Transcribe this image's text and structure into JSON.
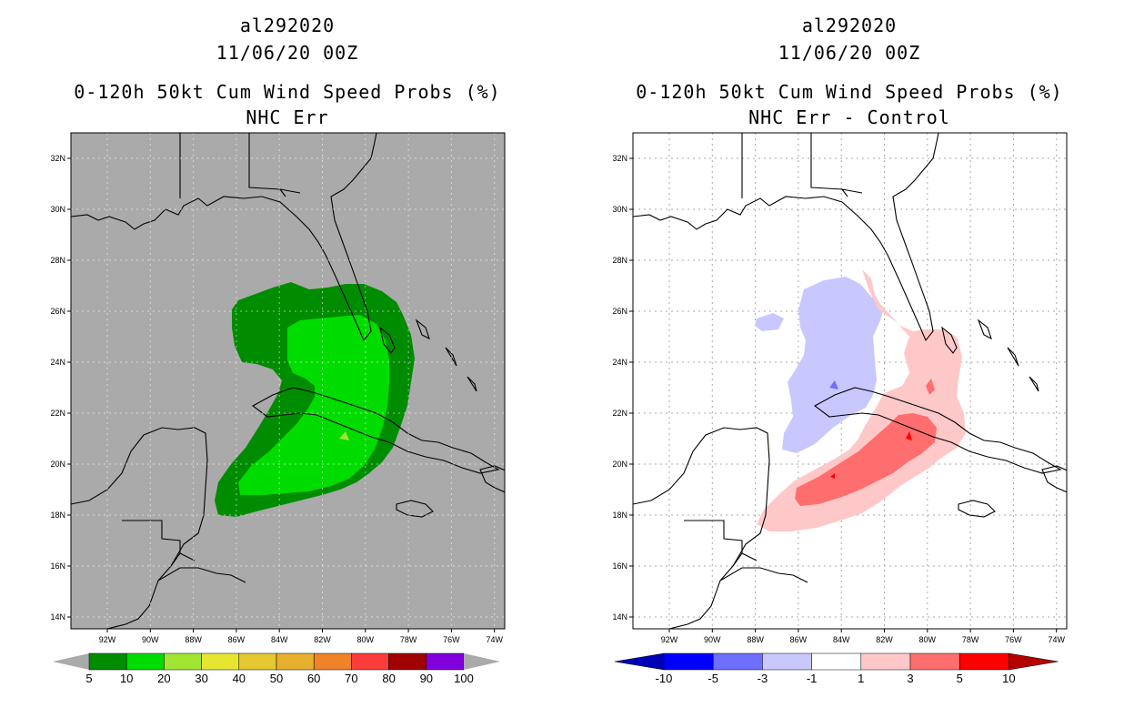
{
  "left_panel": {
    "storm_id": "al292020",
    "date": "11/06/20 00Z",
    "product": "0-120h 50kt Cum Wind Speed Probs (%)",
    "subtitle": "NHC Err",
    "lat_labels": [
      "32N",
      "30N",
      "28N",
      "26N",
      "24N",
      "22N",
      "20N",
      "18N",
      "16N",
      "14N"
    ],
    "lon_labels": [
      "92W",
      "90W",
      "88W",
      "86W",
      "84W",
      "82W",
      "80W",
      "78W",
      "76W",
      "74W"
    ],
    "colorbar": {
      "labels": [
        "5",
        "10",
        "20",
        "30",
        "40",
        "50",
        "60",
        "70",
        "80",
        "90",
        "100"
      ],
      "colors": [
        "#008c00",
        "#00dc00",
        "#a0e632",
        "#e6e632",
        "#e6c832",
        "#e6af2d",
        "#f08228",
        "#fa3c3c",
        "#a00000",
        "#8200dc"
      ]
    },
    "colors": {
      "land_ocean": "#aaaaaa",
      "prob_5": "#008c00",
      "prob_10": "#00dc00",
      "prob_20": "#a0e632"
    }
  },
  "right_panel": {
    "storm_id": "al292020",
    "date": "11/06/20 00Z",
    "product": "0-120h 50kt Cum Wind Speed Probs (%)",
    "subtitle": "NHC Err - Control",
    "lat_labels": [
      "32N",
      "30N",
      "28N",
      "26N",
      "24N",
      "22N",
      "20N",
      "18N",
      "16N",
      "14N"
    ],
    "lon_labels": [
      "92W",
      "90W",
      "88W",
      "86W",
      "84W",
      "82W",
      "80W",
      "78W",
      "76W",
      "74W"
    ],
    "colorbar": {
      "labels": [
        "-10",
        "-5",
        "-3",
        "-1",
        "1",
        "3",
        "5",
        "10"
      ],
      "colors": [
        "#0000b4",
        "#0000ff",
        "#6e6eff",
        "#c8c8ff",
        "#ffffff",
        "#ffc8c8",
        "#ff6e6e",
        "#ff0000",
        "#b40000"
      ]
    }
  }
}
